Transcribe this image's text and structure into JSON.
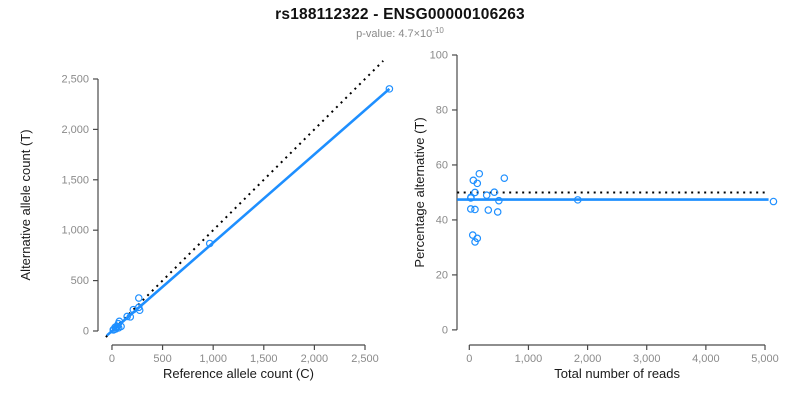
{
  "header": {
    "title": "rs188112322 - ENSG00000106263",
    "subtitle_prefix": "p-value: 4.7×10",
    "subtitle_exponent": "-10"
  },
  "colors": {
    "accent_blue": "#1E8FFF",
    "reference_black": "#000000",
    "tick_label_gray": "#8a8a8a",
    "axis_line_gray": "#4a4a4a",
    "axis_title_color": "#1a1a1a"
  },
  "chart_data": [
    {
      "id": "allele-counts",
      "type": "scatter",
      "xlabel": "Reference allele count (C)",
      "ylabel": "Alternative allele count (T)",
      "x_ticks": [
        0,
        500,
        1000,
        1500,
        2000,
        2500
      ],
      "y_ticks": [
        0,
        500,
        1000,
        1500,
        2000,
        2500
      ],
      "x_tick_labels": [
        "0",
        "500",
        "1,000",
        "1,500",
        "2,000",
        "2,500"
      ],
      "y_tick_labels": [
        "0",
        "500",
        "1,000",
        "1,500",
        "2,000",
        "2,500"
      ],
      "xlim": [
        -138,
        2747
      ],
      "ylim": [
        -139,
        2738
      ],
      "grid": false,
      "points": [
        [
          13,
          12
        ],
        [
          15,
          14
        ],
        [
          14,
          11
        ],
        [
          31,
          37
        ],
        [
          38,
          20
        ],
        [
          48,
          48
        ],
        [
          54,
          42
        ],
        [
          63,
          72
        ],
        [
          66,
          31
        ],
        [
          73,
          96
        ],
        [
          90,
          45
        ],
        [
          150,
          144
        ],
        [
          181,
          140
        ],
        [
          211,
          212
        ],
        [
          265,
          235
        ],
        [
          274,
          206
        ],
        [
          265,
          327
        ],
        [
          966,
          868
        ],
        [
          2741,
          2402
        ]
      ],
      "lines": [
        {
          "name": "identity-line",
          "style": "dotted",
          "color": "black",
          "x1": -60,
          "y1": -60,
          "x2": 2680,
          "y2": 2680
        },
        {
          "name": "fit-line",
          "style": "solid",
          "color": "blue",
          "x1": -50,
          "y1": -44,
          "x2": 2741,
          "y2": 2402
        }
      ]
    },
    {
      "id": "percentage-vs-coverage",
      "type": "scatter",
      "xlabel": "Total number of reads",
      "ylabel": "Percentage alternative (T)",
      "x_ticks": [
        0,
        1000,
        2000,
        3000,
        4000,
        5000
      ],
      "y_ticks": [
        0,
        20,
        40,
        60,
        80,
        100
      ],
      "x_tick_labels": [
        "0",
        "1,000",
        "2,000",
        "3,000",
        "4,000",
        "5,000"
      ],
      "y_tick_labels": [
        "0",
        "20",
        "40",
        "60",
        "80",
        "100"
      ],
      "xlim": [
        -208,
        5169
      ],
      "ylim": [
        -5.5,
        100
      ],
      "grid": false,
      "points": [
        [
          25,
          48.0
        ],
        [
          29,
          48.3
        ],
        [
          25,
          44.0
        ],
        [
          68,
          54.4
        ],
        [
          58,
          34.5
        ],
        [
          96,
          50.0
        ],
        [
          96,
          43.8
        ],
        [
          135,
          53.3
        ],
        [
          97,
          32.0
        ],
        [
          169,
          56.8
        ],
        [
          135,
          33.3
        ],
        [
          294,
          49.0
        ],
        [
          321,
          43.6
        ],
        [
          423,
          50.1
        ],
        [
          500,
          47.0
        ],
        [
          480,
          42.9
        ],
        [
          592,
          55.2
        ],
        [
          1834,
          47.3
        ],
        [
          5143,
          46.7
        ]
      ],
      "lines": [
        {
          "name": "expected-50pct-line",
          "style": "dotted",
          "color": "black",
          "x1": -205,
          "y1": 50,
          "x2": 5030,
          "y2": 50
        },
        {
          "name": "fit-line",
          "style": "solid",
          "color": "blue",
          "x1": -205,
          "y1": 47.4,
          "x2": 5060,
          "y2": 47.4
        }
      ]
    }
  ]
}
